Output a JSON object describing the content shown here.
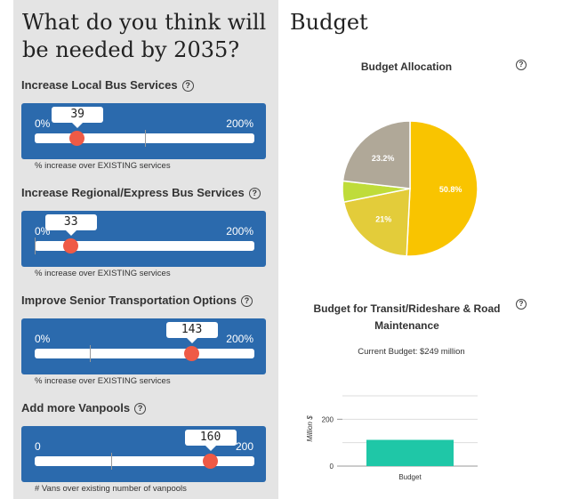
{
  "question": {
    "title": "What do you think will be needed by 2035?"
  },
  "sliders": [
    {
      "label": "Increase Local Bus Services",
      "help": "?",
      "min_label": "0%",
      "max_label": "200%",
      "value": "39",
      "value_num": 39,
      "max": 200,
      "existing": 100,
      "caption": "% increase over EXISTING services"
    },
    {
      "label": "Increase Regional/Express Bus Services",
      "help": "?",
      "min_label": "0%",
      "max_label": "200%",
      "value": "33",
      "value_num": 33,
      "max": 200,
      "existing": 0,
      "caption": "% increase over EXISTING services"
    },
    {
      "label": "Improve Senior Transportation Options",
      "help": "?",
      "min_label": "0%",
      "max_label": "200%",
      "value": "143",
      "value_num": 143,
      "max": 200,
      "existing": 50,
      "caption": "% increase over EXISTING services"
    },
    {
      "label": "Add more Vanpools",
      "help": "?",
      "min_label": "0",
      "max_label": "200",
      "value": "160",
      "value_num": 160,
      "max": 200,
      "existing": 70,
      "caption": "# Vans over existing number of vanpools"
    }
  ],
  "budget": {
    "title": "Budget",
    "allocation_title": "Budget Allocation",
    "help": "?",
    "transit_title_line1": "Budget for Transit/Rideshare & Road",
    "transit_title_line2": "Maintenance",
    "current_budget": "Current Budget: $249 million"
  },
  "colors": {
    "panel": "#e4e4e4",
    "slider_bg": "#2b6aad",
    "handle": "#ef5a46",
    "bar": "#1fc7a7"
  },
  "chart_data": [
    {
      "type": "pie",
      "title": "Budget Allocation",
      "slices": [
        {
          "label": "50.8%",
          "value": 50.8,
          "color": "#f9c400"
        },
        {
          "label": "21%",
          "value": 21,
          "color": "#e3cc3a"
        },
        {
          "label": "",
          "value": 5,
          "color": "#bfdc3a"
        },
        {
          "label": "23.2%",
          "value": 23.2,
          "color": "#b0a898"
        }
      ]
    },
    {
      "type": "bar",
      "title": "Budget for Transit/Rideshare & Road Maintenance",
      "categories": [
        "Budget"
      ],
      "values": [
        112
      ],
      "ylabel": "Million $",
      "yticks": [
        0,
        200
      ],
      "ylim": [
        0,
        300
      ],
      "grid": true
    }
  ]
}
